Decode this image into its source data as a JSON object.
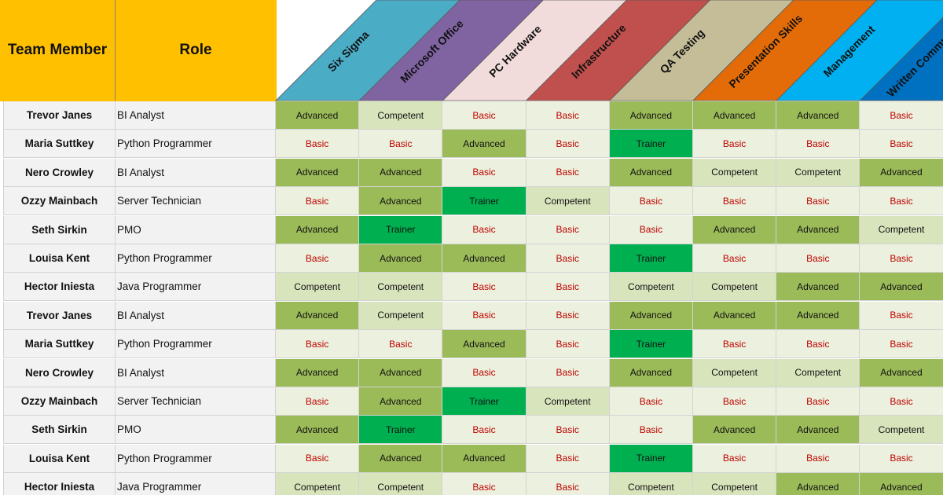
{
  "columns": {
    "member": "Team Member",
    "role": "Role",
    "skills": [
      {
        "label": "Six Sigma",
        "color": "#4bacc6"
      },
      {
        "label": "Microsoft Office",
        "color": "#8064a2"
      },
      {
        "label": "PC Hardware",
        "color": "#f2dcdb"
      },
      {
        "label": "Infrastructure",
        "color": "#c0504d"
      },
      {
        "label": "QA Testing",
        "color": "#c4bd97"
      },
      {
        "label": "Presentation Skills",
        "color": "#e36c09"
      },
      {
        "label": "Management",
        "color": "#00b0f0"
      },
      {
        "label": "Written Communication",
        "color": "#0070c0"
      }
    ]
  },
  "header_color": "#ffc000",
  "level_colors": {
    "Basic": {
      "bg": "#ebf1de",
      "text": "#c00000"
    },
    "Competent": {
      "bg": "#d8e4bc",
      "text": "#111111"
    },
    "Advanced": {
      "bg": "#9bbb59",
      "text": "#111111"
    },
    "Trainer": {
      "bg": "#00b050",
      "text": "#111111"
    }
  },
  "rows": [
    {
      "name": "Trevor Janes",
      "role": "BI Analyst",
      "skills": [
        "Advanced",
        "Competent",
        "Basic",
        "Basic",
        "Advanced",
        "Advanced",
        "Advanced",
        "Basic"
      ]
    },
    {
      "name": "Maria Suttkey",
      "role": "Python Programmer",
      "skills": [
        "Basic",
        "Basic",
        "Advanced",
        "Basic",
        "Trainer",
        "Basic",
        "Basic",
        "Basic"
      ]
    },
    {
      "name": "Nero Crowley",
      "role": "BI Analyst",
      "skills": [
        "Advanced",
        "Advanced",
        "Basic",
        "Basic",
        "Advanced",
        "Competent",
        "Competent",
        "Advanced"
      ]
    },
    {
      "name": "Ozzy Mainbach",
      "role": "Server Technician",
      "skills": [
        "Basic",
        "Advanced",
        "Trainer",
        "Competent",
        "Basic",
        "Basic",
        "Basic",
        "Basic"
      ]
    },
    {
      "name": "Seth Sirkin",
      "role": "PMO",
      "skills": [
        "Advanced",
        "Trainer",
        "Basic",
        "Basic",
        "Basic",
        "Advanced",
        "Advanced",
        "Competent"
      ]
    },
    {
      "name": "Louisa Kent",
      "role": "Python Programmer",
      "skills": [
        "Basic",
        "Advanced",
        "Advanced",
        "Basic",
        "Trainer",
        "Basic",
        "Basic",
        "Basic"
      ]
    },
    {
      "name": "Hector Iniesta",
      "role": "Java Programmer",
      "skills": [
        "Competent",
        "Competent",
        "Basic",
        "Basic",
        "Competent",
        "Competent",
        "Advanced",
        "Advanced"
      ]
    },
    {
      "name": "Trevor Janes",
      "role": "BI Analyst",
      "skills": [
        "Advanced",
        "Competent",
        "Basic",
        "Basic",
        "Advanced",
        "Advanced",
        "Advanced",
        "Basic"
      ]
    },
    {
      "name": "Maria Suttkey",
      "role": "Python Programmer",
      "skills": [
        "Basic",
        "Basic",
        "Advanced",
        "Basic",
        "Trainer",
        "Basic",
        "Basic",
        "Basic"
      ]
    },
    {
      "name": "Nero Crowley",
      "role": "BI Analyst",
      "skills": [
        "Advanced",
        "Advanced",
        "Basic",
        "Basic",
        "Advanced",
        "Competent",
        "Competent",
        "Advanced"
      ]
    },
    {
      "name": "Ozzy Mainbach",
      "role": "Server Technician",
      "skills": [
        "Basic",
        "Advanced",
        "Trainer",
        "Competent",
        "Basic",
        "Basic",
        "Basic",
        "Basic"
      ]
    },
    {
      "name": "Seth Sirkin",
      "role": "PMO",
      "skills": [
        "Advanced",
        "Trainer",
        "Basic",
        "Basic",
        "Basic",
        "Advanced",
        "Advanced",
        "Competent"
      ]
    },
    {
      "name": "Louisa Kent",
      "role": "Python Programmer",
      "skills": [
        "Basic",
        "Advanced",
        "Advanced",
        "Basic",
        "Trainer",
        "Basic",
        "Basic",
        "Basic"
      ]
    },
    {
      "name": "Hector Iniesta",
      "role": "Java Programmer",
      "skills": [
        "Competent",
        "Competent",
        "Basic",
        "Basic",
        "Competent",
        "Competent",
        "Advanced",
        "Advanced"
      ]
    }
  ]
}
